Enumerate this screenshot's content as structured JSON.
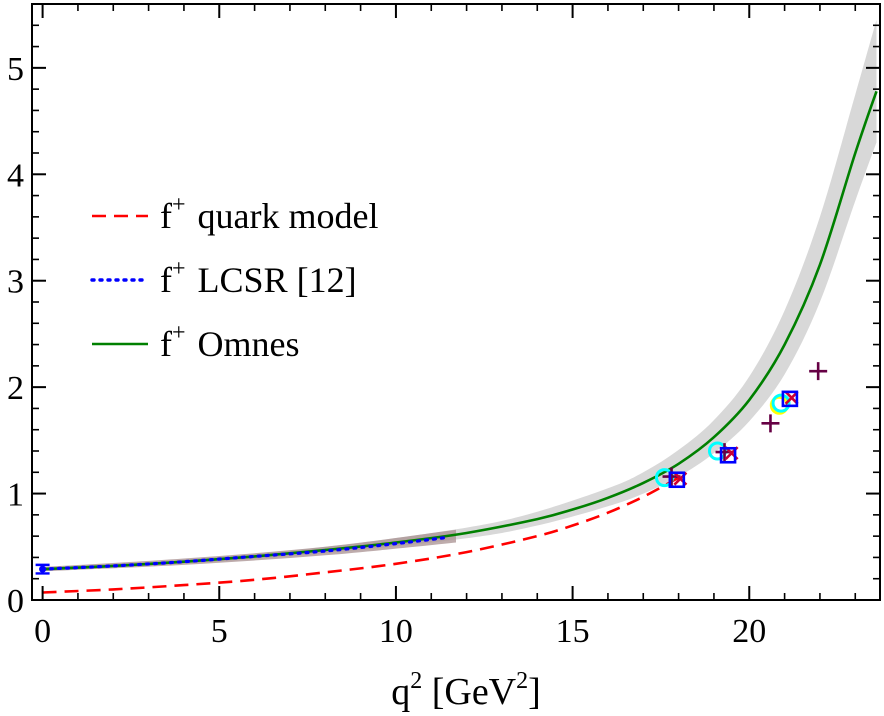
{
  "chart_data": {
    "type": "line",
    "xlabel": "q",
    "xlabel_sup": "2",
    "xlabel_unit_pre": " [GeV",
    "xlabel_unit_sup": "2",
    "xlabel_unit_post": "]",
    "xlim": [
      -0.3,
      23.7
    ],
    "ylim": [
      0,
      5.6
    ],
    "xticks": [
      0,
      5,
      10,
      15,
      20
    ],
    "yticks": [
      0,
      1,
      2,
      3,
      4,
      5
    ],
    "grid": false,
    "legend": {
      "placement": "left",
      "entries": [
        {
          "prefix": "f",
          "sup": "+",
          "label": "quark model",
          "color": "#ff0000",
          "style": "dashed"
        },
        {
          "prefix": "f",
          "sup": "+",
          "label": "LCSR [12]",
          "color": "#0000ff",
          "style": "dotted"
        },
        {
          "prefix": "f",
          "sup": "+",
          "label": "Omnes",
          "color": "#008000",
          "style": "solid"
        }
      ]
    },
    "series": [
      {
        "name": "f+ quark model",
        "color": "#ff0000",
        "style": "dashed",
        "x": [
          0,
          2,
          4,
          6,
          8,
          10,
          12,
          14,
          15,
          16,
          17,
          18
        ],
        "y": [
          0.07,
          0.1,
          0.14,
          0.19,
          0.26,
          0.34,
          0.45,
          0.6,
          0.7,
          0.82,
          0.97,
          1.15
        ]
      },
      {
        "name": "f+ LCSR [12]",
        "color": "#0000ff",
        "style": "dotted",
        "x": [
          0,
          2,
          4,
          6,
          8,
          10,
          11.5
        ],
        "y": [
          0.29,
          0.32,
          0.36,
          0.41,
          0.46,
          0.53,
          0.59
        ]
      },
      {
        "name": "f+ Omnes",
        "color": "#008000",
        "style": "solid",
        "x": [
          0,
          2,
          4,
          6,
          8,
          10,
          12,
          14,
          15,
          16,
          17,
          18,
          19,
          20,
          21,
          22,
          23,
          23.6
        ],
        "y": [
          0.29,
          0.32,
          0.36,
          0.41,
          0.47,
          0.54,
          0.63,
          0.76,
          0.85,
          0.96,
          1.1,
          1.28,
          1.53,
          1.88,
          2.4,
          3.15,
          4.2,
          4.78
        ]
      }
    ],
    "bands": [
      {
        "name": "Omnes uncertainty",
        "color": "#d8d8d8",
        "x": [
          0,
          4,
          8,
          12,
          14,
          16,
          17,
          18,
          19,
          20,
          21,
          22,
          23,
          23.6
        ],
        "lower": [
          0.27,
          0.34,
          0.44,
          0.58,
          0.7,
          0.88,
          1.0,
          1.16,
          1.38,
          1.68,
          2.12,
          2.8,
          3.75,
          4.3
        ],
        "upper": [
          0.31,
          0.38,
          0.5,
          0.68,
          0.83,
          1.05,
          1.2,
          1.41,
          1.69,
          2.1,
          2.72,
          3.6,
          4.75,
          5.45
        ]
      },
      {
        "name": "LCSR uncertainty",
        "color": "#a89090",
        "x": [
          0,
          4,
          8,
          11.7
        ],
        "lower": [
          0.27,
          0.33,
          0.42,
          0.54
        ],
        "upper": [
          0.31,
          0.39,
          0.5,
          0.66
        ]
      }
    ],
    "points": [
      {
        "marker": "errorbar",
        "color": "#0000ff",
        "x": 0.0,
        "y": 0.29,
        "yerr": 0.04
      },
      {
        "marker": "circle",
        "color": "#00ffff",
        "x": 17.6,
        "y": 1.15
      },
      {
        "marker": "plus",
        "color": "#660044",
        "x": 17.8,
        "y": 1.16
      },
      {
        "marker": "x",
        "color": "#cc0033",
        "x": 18.05,
        "y": 1.14
      },
      {
        "marker": "square",
        "color": "#0000ff",
        "x": 17.95,
        "y": 1.13
      },
      {
        "marker": "circle",
        "color": "#00ffff",
        "x": 19.1,
        "y": 1.4
      },
      {
        "marker": "plus",
        "color": "#660044",
        "x": 19.3,
        "y": 1.39
      },
      {
        "marker": "x",
        "color": "#cc0033",
        "x": 19.5,
        "y": 1.38
      },
      {
        "marker": "square",
        "color": "#0000ff",
        "x": 19.4,
        "y": 1.36
      },
      {
        "marker": "circle",
        "color": "#ffff00",
        "x": 20.85,
        "y": 1.83
      },
      {
        "marker": "circle",
        "color": "#00ffff",
        "x": 20.9,
        "y": 1.85
      },
      {
        "marker": "x",
        "color": "#cc0033",
        "x": 21.2,
        "y": 1.9
      },
      {
        "marker": "square",
        "color": "#0000ff",
        "x": 21.15,
        "y": 1.89
      },
      {
        "marker": "plus",
        "color": "#660044",
        "x": 20.6,
        "y": 1.66
      },
      {
        "marker": "plus",
        "color": "#660044",
        "x": 21.95,
        "y": 2.15
      }
    ]
  }
}
